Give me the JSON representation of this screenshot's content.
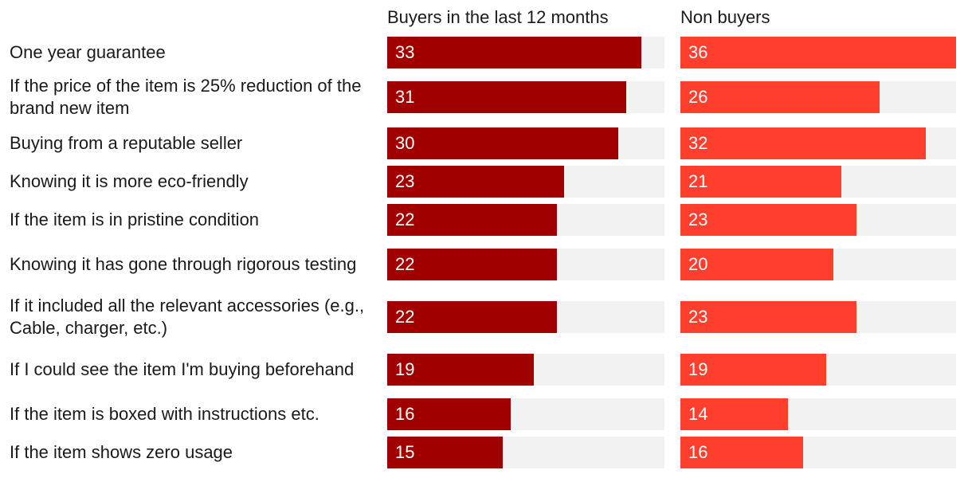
{
  "chart_data": {
    "type": "bar",
    "orientation": "horizontal",
    "title": "",
    "xlabel": "",
    "ylabel": "",
    "xlim": [
      0,
      36
    ],
    "grid": false,
    "categories": [
      "One year guarantee",
      "If the price of the item is 25% reduction of the brand new item",
      "Buying from a reputable seller",
      "Knowing it is more eco-friendly",
      "If the item is in pristine condition",
      "Knowing it has gone through rigorous testing",
      "If it included all the relevant accessories (e.g., Cable, charger, etc.)",
      "If I could see the item I'm buying beforehand",
      "If the item is boxed with instructions etc.",
      "If the item shows zero usage"
    ],
    "series": [
      {
        "name": "Buyers in the last 12 months",
        "color": "#a00000",
        "values": [
          33,
          31,
          30,
          23,
          22,
          22,
          22,
          19,
          16,
          15
        ]
      },
      {
        "name": "Non buyers",
        "color": "#ff3f2e",
        "values": [
          36,
          26,
          32,
          21,
          23,
          20,
          23,
          19,
          14,
          16
        ]
      }
    ]
  },
  "colors": {
    "track": "#f2f2f2",
    "value_text": "#ffffff"
  }
}
